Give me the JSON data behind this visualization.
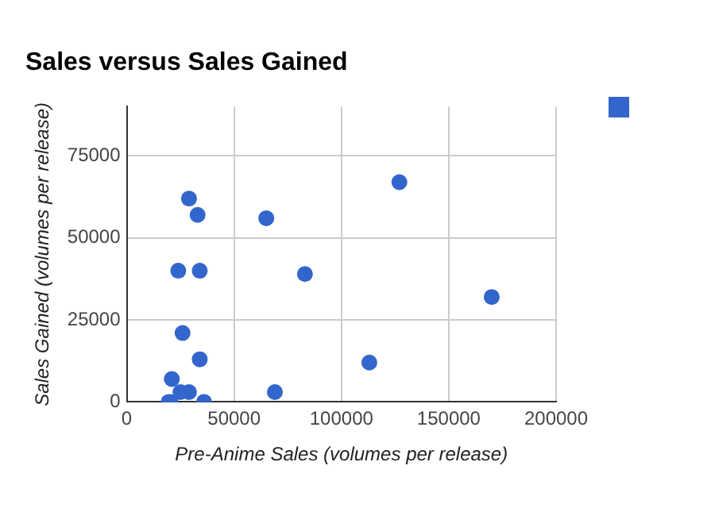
{
  "chart_data": {
    "type": "scatter",
    "title": "Sales versus Sales Gained",
    "xlabel": "Pre-Anime Sales (volumes per release)",
    "ylabel": "Sales Gained (volumes per release)",
    "series": [
      {
        "color": "#3366cc",
        "x": [
          29000,
          33000,
          65000,
          127000,
          24000,
          34000,
          83000,
          170000,
          26000,
          34000,
          113000,
          21000,
          25000,
          29000,
          69000,
          19500,
          20500,
          36000
        ],
        "values": [
          62000,
          57000,
          56000,
          67000,
          40000,
          40000,
          39000,
          32000,
          21000,
          13000,
          12000,
          7000,
          3000,
          3000,
          3000,
          0,
          0,
          0
        ]
      }
    ],
    "xlim": [
      0,
      200000
    ],
    "xticks": [
      0,
      50000,
      100000,
      150000,
      200000
    ],
    "ylim": [
      0,
      90000
    ],
    "yticks": [
      0,
      25000,
      50000,
      75000
    ],
    "grid": true,
    "marker": "circle"
  }
}
